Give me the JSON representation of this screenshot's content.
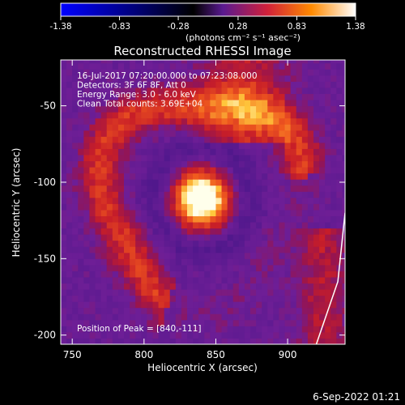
{
  "colorbar": {
    "ticks": [
      "-1.38",
      "-0.83",
      "-0.28",
      "0.28",
      "0.83",
      "1.38"
    ],
    "tick_values": [
      -1.38,
      -0.83,
      -0.28,
      0.28,
      0.83,
      1.38
    ],
    "range": [
      -1.38,
      1.38
    ],
    "units_label": "(photons cm⁻² s⁻¹ asec⁻²)",
    "colormap": [
      "#0000ff",
      "#000000",
      "#6a1cb0",
      "#e0203a",
      "#ff8800",
      "#ffffff"
    ]
  },
  "chart_data": {
    "type": "heatmap",
    "title": "Reconstructed RHESSI Image",
    "xlabel": "Heliocentric X (arcsec)",
    "ylabel": "Heliocentric Y (arcsec)",
    "xlim": [
      742,
      940
    ],
    "ylim": [
      -206,
      -20
    ],
    "xticks": [
      750,
      800,
      850,
      900
    ],
    "yticks": [
      -50,
      -100,
      -150,
      -200
    ],
    "annotations": [
      "16-Jul-2017 07:20:00.000 to 07:23:08.000",
      "Detectors: 3F 6F 8F, Att 0",
      "Energy Range: 3.0 - 6.0 keV",
      "Clean    Total counts: 3.69E+04"
    ],
    "peak_label": "Position of Peak = [840,-111]",
    "peak": [
      840,
      -111
    ],
    "peak_value": 1.38,
    "limb_line": [
      [
        920,
        -206
      ],
      [
        935,
        -165
      ],
      [
        940,
        -120
      ]
    ]
  },
  "footer": {
    "date": "6-Sep-2022 01:21"
  }
}
